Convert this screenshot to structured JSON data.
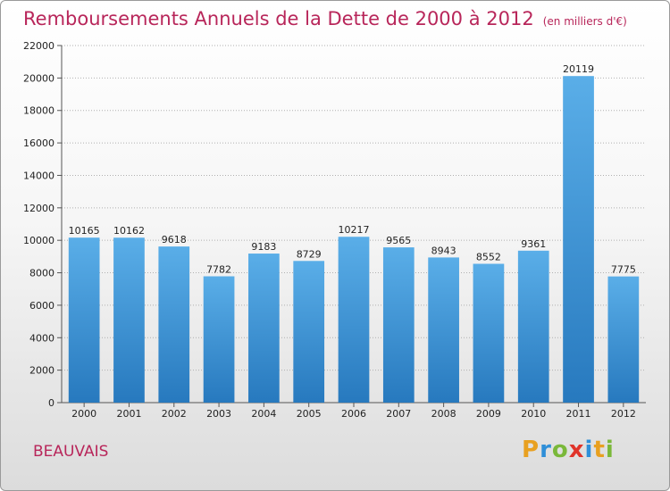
{
  "header": {
    "title": "Remboursements Annuels de la Dette de 2000 à 2012",
    "subtitle": "(en milliers d'€)"
  },
  "footer": {
    "city": "BEAUVAIS",
    "logo_letters": [
      "P",
      "r",
      "o",
      "x",
      "i",
      "t",
      "i"
    ],
    "logo_colors": [
      "#e8a020",
      "#2f8fd8",
      "#7ab83a",
      "#e0342a",
      "#2f8fd8",
      "#e8a020",
      "#7ab83a"
    ]
  },
  "colors": {
    "bar_light": "#5aaee8",
    "bar_dark": "#2779be",
    "title": "#b8265a",
    "grid": "#b0b0b0"
  },
  "chart_data": {
    "type": "bar",
    "title": "Remboursements Annuels de la Dette de 2000 à 2012",
    "subtitle": "(en milliers d'€)",
    "categories": [
      "2000",
      "2001",
      "2002",
      "2003",
      "2004",
      "2005",
      "2006",
      "2007",
      "2008",
      "2009",
      "2010",
      "2011",
      "2012"
    ],
    "values": [
      10165,
      10162,
      9618,
      7782,
      9183,
      8729,
      10217,
      9565,
      8943,
      8552,
      9361,
      20119,
      7775
    ],
    "ylim": [
      0,
      22000
    ],
    "yticks": [
      0,
      2000,
      4000,
      6000,
      8000,
      10000,
      12000,
      14000,
      16000,
      18000,
      20000,
      22000
    ],
    "grid": "horizontal dotted",
    "data_labels": true
  }
}
